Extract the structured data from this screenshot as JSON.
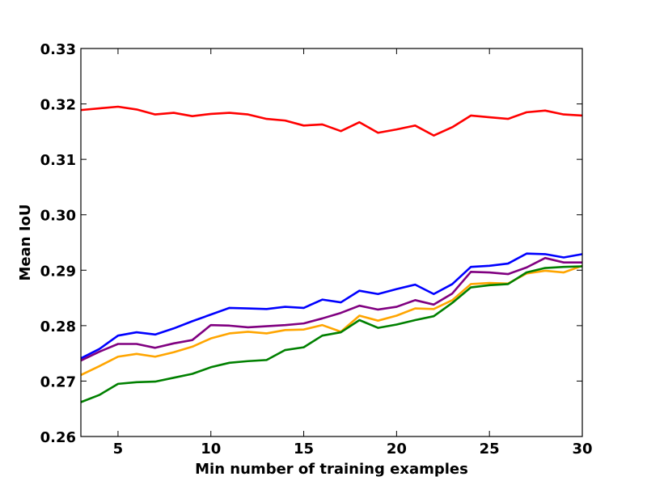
{
  "chart_data": {
    "type": "line",
    "title": "",
    "xlabel": "Min number of training examples",
    "ylabel": "Mean IoU",
    "xlim": [
      3,
      30
    ],
    "ylim": [
      0.26,
      0.33
    ],
    "xticks": [
      5,
      10,
      15,
      20,
      25,
      30
    ],
    "xtick_labels": [
      "5",
      "10",
      "15",
      "20",
      "25",
      "30"
    ],
    "yticks": [
      0.26,
      0.27,
      0.28,
      0.29,
      0.3,
      0.31,
      0.32,
      0.33
    ],
    "ytick_labels": [
      "0.26",
      "0.27",
      "0.28",
      "0.29",
      "0.30",
      "0.31",
      "0.32",
      "0.33"
    ],
    "grid": false,
    "legend": null,
    "x": [
      3,
      4,
      5,
      6,
      7,
      8,
      9,
      10,
      11,
      12,
      13,
      14,
      15,
      16,
      17,
      18,
      19,
      20,
      21,
      22,
      23,
      24,
      25,
      26,
      27,
      28,
      29,
      30
    ],
    "series": [
      {
        "color": "#ff0000",
        "values": [
          0.3189,
          0.3192,
          0.3195,
          0.319,
          0.3181,
          0.3184,
          0.3178,
          0.3182,
          0.3184,
          0.3181,
          0.3173,
          0.317,
          0.3161,
          0.3163,
          0.3151,
          0.3167,
          0.3148,
          0.3154,
          0.3161,
          0.3143,
          0.3158,
          0.3179,
          0.3176,
          0.3173,
          0.3185,
          0.3188,
          0.3181,
          0.3179
        ]
      },
      {
        "color": "#0000ff",
        "values": [
          0.2741,
          0.2758,
          0.2782,
          0.2788,
          0.2784,
          0.2795,
          0.2808,
          0.282,
          0.2832,
          0.2831,
          0.283,
          0.2834,
          0.2832,
          0.2847,
          0.2842,
          0.2863,
          0.2857,
          0.2866,
          0.2874,
          0.2857,
          0.2875,
          0.2906,
          0.2908,
          0.2912,
          0.293,
          0.2929,
          0.2923,
          0.2929
        ]
      },
      {
        "color": "#800080",
        "values": [
          0.2737,
          0.2753,
          0.2767,
          0.2767,
          0.276,
          0.2768,
          0.2774,
          0.2801,
          0.28,
          0.2797,
          0.2799,
          0.2801,
          0.2804,
          0.2813,
          0.2823,
          0.2836,
          0.2829,
          0.2834,
          0.2846,
          0.2838,
          0.2858,
          0.2897,
          0.2896,
          0.2893,
          0.2905,
          0.2922,
          0.2914,
          0.2914
        ]
      },
      {
        "color": "#ffa500",
        "values": [
          0.2711,
          0.2727,
          0.2744,
          0.2749,
          0.2744,
          0.2752,
          0.2762,
          0.2777,
          0.2786,
          0.2789,
          0.2786,
          0.2792,
          0.2793,
          0.2801,
          0.2789,
          0.2818,
          0.2809,
          0.2818,
          0.2831,
          0.283,
          0.2846,
          0.2875,
          0.2877,
          0.2876,
          0.2894,
          0.2899,
          0.2896,
          0.2908
        ]
      },
      {
        "color": "#008000",
        "values": [
          0.2662,
          0.2675,
          0.2695,
          0.2698,
          0.2699,
          0.2706,
          0.2713,
          0.2725,
          0.2733,
          0.2736,
          0.2738,
          0.2756,
          0.2761,
          0.2782,
          0.2788,
          0.281,
          0.2796,
          0.2802,
          0.281,
          0.2817,
          0.2841,
          0.2869,
          0.2873,
          0.2875,
          0.2896,
          0.2904,
          0.2906,
          0.2907
        ]
      }
    ]
  }
}
